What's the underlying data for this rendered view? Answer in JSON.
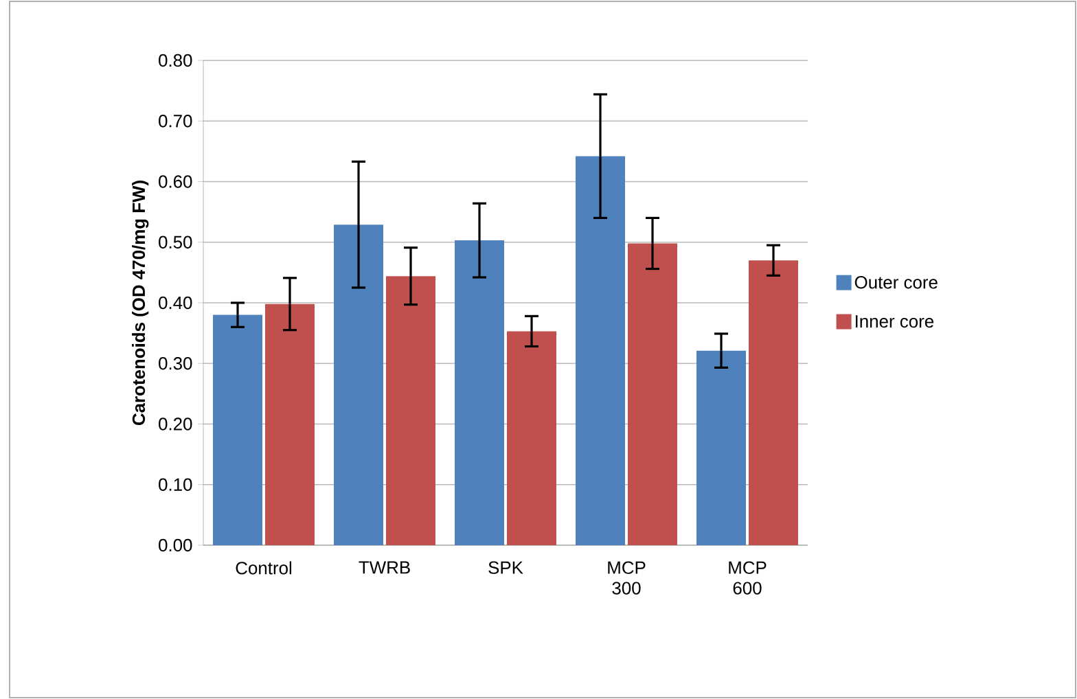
{
  "chart_data": {
    "type": "bar",
    "ylabel": "Carotenoids (OD 470/mg FW)",
    "categories": [
      "Control",
      "TWRB",
      "SPK",
      "MCP 300",
      "MCP 600"
    ],
    "series": [
      {
        "name": "Outer core",
        "color": "#4f81bd",
        "values": [
          0.38,
          0.529,
          0.503,
          0.642,
          0.321
        ],
        "errors": [
          0.02,
          0.104,
          0.061,
          0.102,
          0.028
        ]
      },
      {
        "name": "Inner core",
        "color": "#c0504d",
        "values": [
          0.398,
          0.444,
          0.353,
          0.498,
          0.47
        ],
        "errors": [
          0.043,
          0.047,
          0.025,
          0.042,
          0.025
        ]
      }
    ],
    "ylim": [
      0,
      0.8
    ],
    "yticks": [
      {
        "value": 0,
        "label": "0.00"
      },
      {
        "value": 0.1,
        "label": "0.10"
      },
      {
        "value": 0.2,
        "label": "0.20"
      },
      {
        "value": 0.3,
        "label": "0.30"
      },
      {
        "value": 0.4,
        "label": "0.40"
      },
      {
        "value": 0.5,
        "label": "0.50"
      },
      {
        "value": 0.6,
        "label": "0.60"
      },
      {
        "value": 0.7,
        "label": "0.70"
      },
      {
        "value": 0.8,
        "label": "0.80"
      }
    ],
    "grid": "y",
    "legend": "right"
  }
}
